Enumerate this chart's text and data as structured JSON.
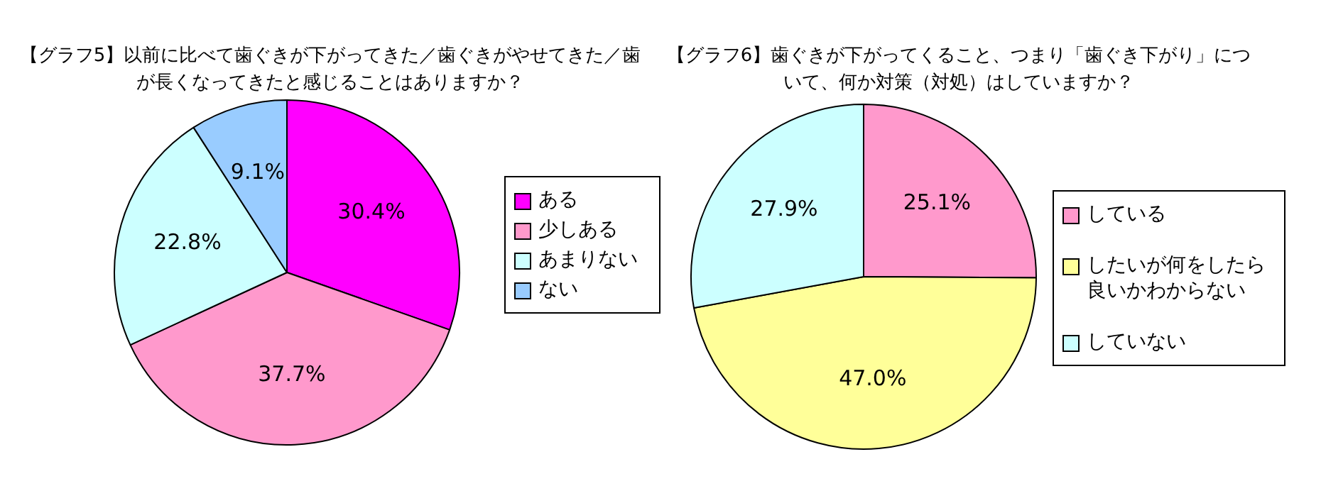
{
  "chart_data": [
    {
      "type": "pie",
      "title": "【グラフ5】以前に比べて歯ぐきが下がってきた／歯ぐきがやせてきた／歯が長くなってきたと感じることはありますか？",
      "categories": [
        "ある",
        "少しある",
        "あまりない",
        "ない"
      ],
      "values": [
        30.4,
        37.7,
        22.8,
        9.1
      ],
      "colors": [
        "#ff00ff",
        "#ff99cc",
        "#ccffff",
        "#99ccff"
      ],
      "value_labels": [
        "30.4%",
        "37.7%",
        "22.8%",
        "9.1%"
      ],
      "legend": "right"
    },
    {
      "type": "pie",
      "title": "【グラフ6】歯ぐきが下がってくること、つまり「歯ぐき下がり」について、何か対策（対処）はしていますか？",
      "categories": [
        "している",
        "したいが何をしたら良いかわからない",
        "していない"
      ],
      "values": [
        25.1,
        47.0,
        27.9
      ],
      "colors": [
        "#ff99cc",
        "#ffff99",
        "#ccffff"
      ],
      "value_labels": [
        "25.1%",
        "47.0%",
        "27.9%"
      ],
      "legend": "right"
    }
  ]
}
